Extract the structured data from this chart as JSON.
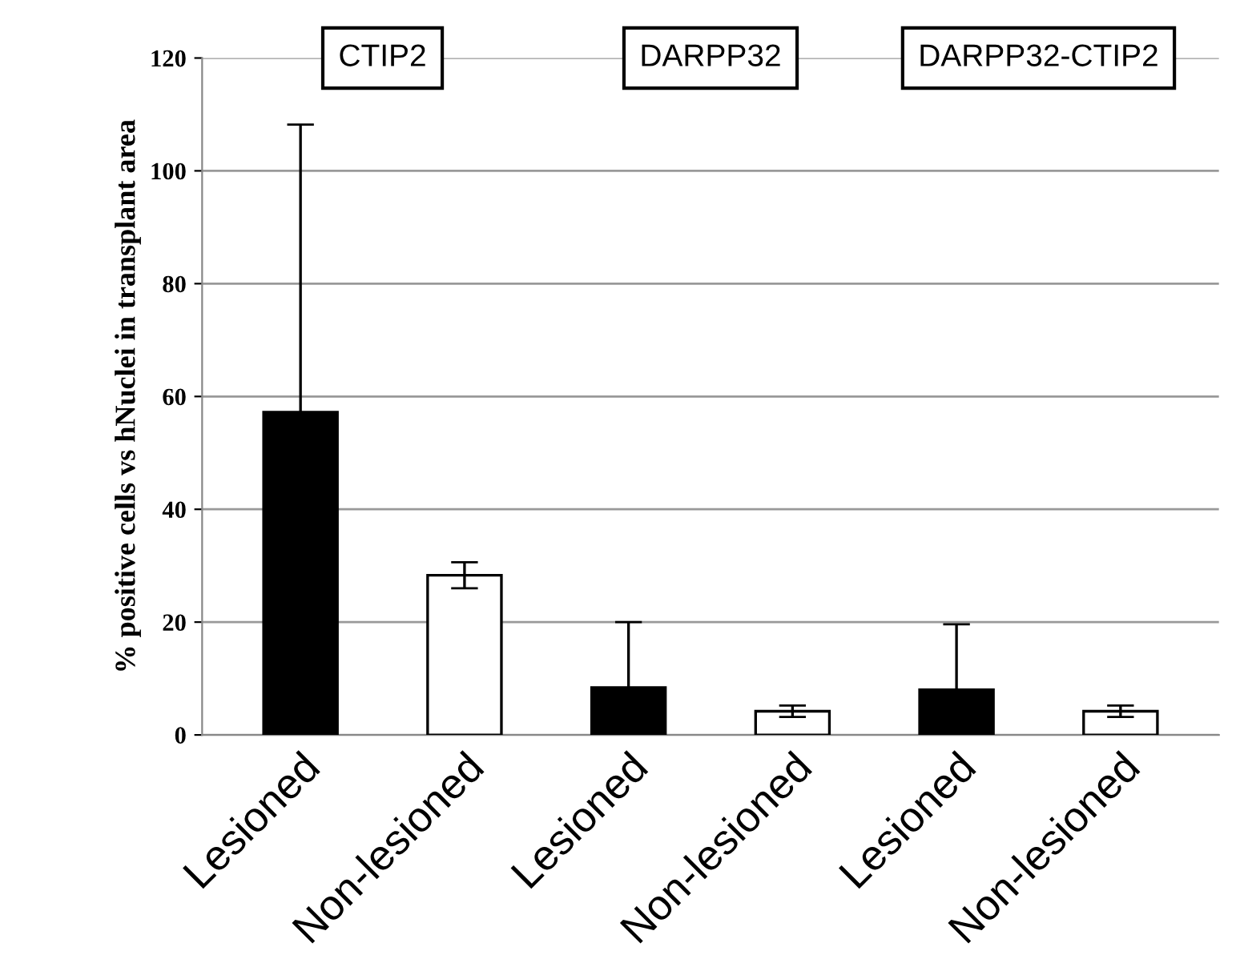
{
  "chart_data": {
    "type": "bar",
    "ylabel": "% positive cells vs hNuclei in transplant area",
    "categories": [
      "Lesioned",
      "Non-lesioned",
      "Lesioned",
      "Non-lesioned",
      "Lesioned",
      "Non-lesioned"
    ],
    "values": [
      57.2,
      28.3,
      8.4,
      4.2,
      8.0,
      4.2
    ],
    "errors": [
      51,
      2.3,
      11.6,
      1.0,
      11.6,
      1.0
    ],
    "colors": [
      "#000000",
      "#ffffff",
      "#000000",
      "#ffffff",
      "#000000",
      "#ffffff"
    ],
    "ylim": [
      0,
      120
    ],
    "yticks": [
      0,
      20,
      40,
      60,
      80,
      100,
      120
    ],
    "grid": "y",
    "annotations": [
      "CTIP2",
      "DARPP32",
      "DARPP32-CTIP2"
    ]
  }
}
